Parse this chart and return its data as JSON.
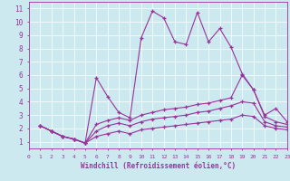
{
  "xlabel": "Windchill (Refroidissement éolien,°C)",
  "background_color": "#cce9f0",
  "line_color": "#993399",
  "xlim": [
    0,
    23
  ],
  "ylim": [
    0.5,
    11.5
  ],
  "xticks": [
    0,
    1,
    2,
    3,
    4,
    5,
    6,
    7,
    8,
    9,
    10,
    11,
    12,
    13,
    14,
    15,
    16,
    17,
    18,
    19,
    20,
    21,
    22,
    23
  ],
  "yticks": [
    1,
    2,
    3,
    4,
    5,
    6,
    7,
    8,
    9,
    10,
    11
  ],
  "lines": [
    {
      "x": [
        1,
        2,
        3,
        4,
        5,
        6,
        7,
        8,
        9,
        10,
        11,
        12,
        13,
        14,
        15,
        16,
        17,
        18,
        19,
        20,
        21,
        22,
        23
      ],
      "y": [
        2.2,
        1.8,
        1.4,
        1.2,
        0.9,
        5.8,
        4.4,
        3.2,
        2.8,
        8.8,
        10.8,
        10.3,
        8.5,
        8.3,
        10.7,
        8.5,
        9.5,
        8.1,
        6.1,
        4.9,
        3.0,
        3.5,
        2.5
      ]
    },
    {
      "x": [
        1,
        2,
        3,
        4,
        5,
        6,
        7,
        8,
        9,
        10,
        11,
        12,
        13,
        14,
        15,
        16,
        17,
        18,
        19,
        20,
        21,
        22,
        23
      ],
      "y": [
        2.2,
        1.8,
        1.4,
        1.2,
        0.9,
        2.3,
        2.6,
        2.8,
        2.6,
        3.0,
        3.2,
        3.4,
        3.5,
        3.6,
        3.8,
        3.9,
        4.1,
        4.3,
        6.0,
        4.9,
        2.9,
        2.5,
        2.3
      ]
    },
    {
      "x": [
        1,
        2,
        3,
        4,
        5,
        6,
        7,
        8,
        9,
        10,
        11,
        12,
        13,
        14,
        15,
        16,
        17,
        18,
        19,
        20,
        21,
        22,
        23
      ],
      "y": [
        2.2,
        1.8,
        1.4,
        1.2,
        0.9,
        1.8,
        2.2,
        2.4,
        2.2,
        2.5,
        2.7,
        2.8,
        2.9,
        3.0,
        3.2,
        3.3,
        3.5,
        3.7,
        4.0,
        3.9,
        2.5,
        2.2,
        2.1
      ]
    },
    {
      "x": [
        1,
        2,
        3,
        4,
        5,
        6,
        7,
        8,
        9,
        10,
        11,
        12,
        13,
        14,
        15,
        16,
        17,
        18,
        19,
        20,
        21,
        22,
        23
      ],
      "y": [
        2.2,
        1.8,
        1.4,
        1.2,
        0.9,
        1.4,
        1.6,
        1.8,
        1.6,
        1.9,
        2.0,
        2.1,
        2.2,
        2.3,
        2.4,
        2.5,
        2.6,
        2.7,
        3.0,
        2.9,
        2.2,
        2.0,
        1.9
      ]
    }
  ]
}
